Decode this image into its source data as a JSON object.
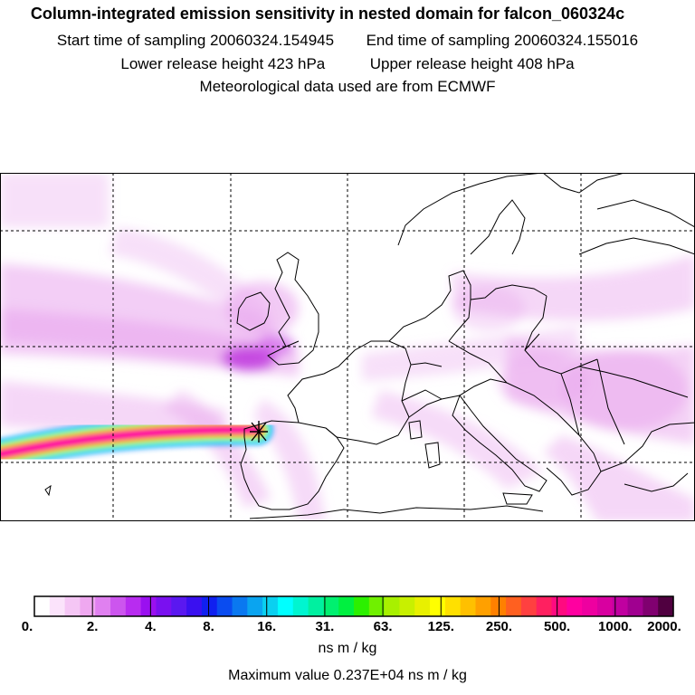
{
  "header": {
    "title": "Column-integrated emission sensitivity in nested domain for falcon_060324c",
    "start_label": "Start time of sampling 20060324.154945",
    "end_label": "End time of sampling 20060324.155016",
    "lower_label": "Lower release height  423 hPa",
    "upper_label": "Upper release height  408 hPa",
    "met_label": "Meteorological data used are from ECMWF"
  },
  "map": {
    "region": "Western / Central Europe and eastern North Atlantic",
    "release_marker_icon": "asterisk-marker-icon",
    "plume_colors": [
      "#ff00aa",
      "#ff1a60",
      "#ff6a00",
      "#ffd400",
      "#b8f000",
      "#00ff80",
      "#00e0ff",
      "#2a8cff"
    ]
  },
  "colorbar": {
    "colors": [
      "#ffffff",
      "#fbe3fb",
      "#f5c6f5",
      "#efa8f0",
      "#e080f0",
      "#cc55ee",
      "#b82cf0",
      "#9a10f0",
      "#7a10f0",
      "#5a18f0",
      "#3a10f0",
      "#1020f0",
      "#0a4cf0",
      "#0a78f0",
      "#0aa4f0",
      "#0ad0f0",
      "#00ffff",
      "#00f5d0",
      "#00f0a0",
      "#00f070",
      "#00f040",
      "#2cf000",
      "#70f000",
      "#a8f000",
      "#c8f000",
      "#e8f000",
      "#ffff00",
      "#ffe000",
      "#ffc000",
      "#ffa000",
      "#ff8000",
      "#ff6020",
      "#ff4040",
      "#ff2060",
      "#ff0a80",
      "#ff00a0",
      "#ee00a0",
      "#d800a0",
      "#c000a0",
      "#a00090",
      "#800070",
      "#500040"
    ],
    "ticks": [
      "0.",
      "2.",
      "4.",
      "8.",
      "16.",
      "31.",
      "63.",
      "125.",
      "250.",
      "500.",
      "1000.",
      "2000."
    ],
    "unit": "ns m / kg"
  },
  "footer": {
    "max_value": "Maximum value  0.237E+04 ns m / kg"
  }
}
